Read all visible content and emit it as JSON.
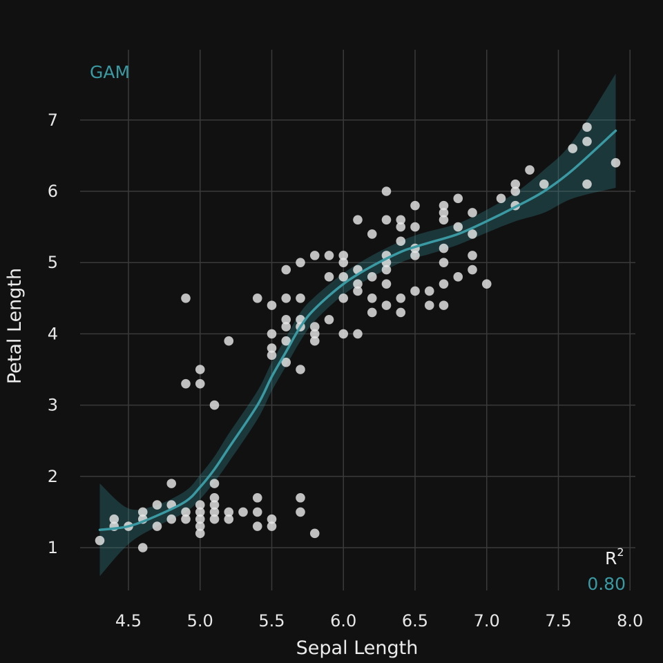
{
  "colors": {
    "background": "#111111",
    "grid": "#3a3a3a",
    "points": "#e6e6e6",
    "fit_line": "#3a9aa3",
    "ribbon": "#3a9aa3",
    "text": "#e8e8e8"
  },
  "chart_data": {
    "type": "scatter",
    "xlabel": "Sepal Length",
    "ylabel": "Petal Length",
    "xlim": [
      4.3,
      7.9
    ],
    "ylim": [
      1.0,
      6.9
    ],
    "x_ticks": [
      "4.5",
      "5.0",
      "5.5",
      "6.0",
      "6.5",
      "7.0",
      "7.5",
      "8.0"
    ],
    "y_ticks": [
      "1",
      "2",
      "3",
      "4",
      "5",
      "6",
      "7"
    ],
    "grid": true,
    "model_label": "GAM",
    "r2_label": "R",
    "r2_superscript": "2",
    "r2_value": "0.80",
    "series": [
      {
        "points": [
          [
            4.3,
            1.1
          ],
          [
            4.4,
            1.3
          ],
          [
            4.4,
            1.4
          ],
          [
            4.5,
            1.3
          ],
          [
            4.6,
            1.0
          ],
          [
            4.6,
            1.4
          ],
          [
            4.6,
            1.5
          ],
          [
            4.7,
            1.3
          ],
          [
            4.7,
            1.6
          ],
          [
            4.8,
            1.4
          ],
          [
            4.8,
            1.6
          ],
          [
            4.8,
            1.9
          ],
          [
            4.9,
            1.4
          ],
          [
            4.9,
            1.5
          ],
          [
            4.9,
            3.3
          ],
          [
            4.9,
            4.5
          ],
          [
            5.0,
            1.2
          ],
          [
            5.0,
            1.3
          ],
          [
            5.0,
            1.4
          ],
          [
            5.0,
            1.5
          ],
          [
            5.0,
            1.6
          ],
          [
            5.0,
            3.3
          ],
          [
            5.0,
            3.5
          ],
          [
            5.1,
            1.4
          ],
          [
            5.1,
            1.5
          ],
          [
            5.1,
            1.6
          ],
          [
            5.1,
            1.7
          ],
          [
            5.1,
            1.9
          ],
          [
            5.1,
            3.0
          ],
          [
            5.2,
            1.4
          ],
          [
            5.2,
            1.5
          ],
          [
            5.2,
            3.9
          ],
          [
            5.3,
            1.5
          ],
          [
            5.4,
            1.3
          ],
          [
            5.4,
            1.5
          ],
          [
            5.4,
            1.7
          ],
          [
            5.4,
            4.5
          ],
          [
            5.5,
            1.3
          ],
          [
            5.5,
            1.4
          ],
          [
            5.5,
            3.7
          ],
          [
            5.5,
            3.8
          ],
          [
            5.5,
            4.0
          ],
          [
            5.5,
            4.4
          ],
          [
            5.6,
            3.6
          ],
          [
            5.6,
            3.9
          ],
          [
            5.6,
            4.1
          ],
          [
            5.6,
            4.2
          ],
          [
            5.6,
            4.5
          ],
          [
            5.6,
            4.9
          ],
          [
            5.7,
            1.5
          ],
          [
            5.7,
            1.7
          ],
          [
            5.7,
            3.5
          ],
          [
            5.7,
            4.1
          ],
          [
            5.7,
            4.2
          ],
          [
            5.7,
            4.5
          ],
          [
            5.7,
            5.0
          ],
          [
            5.8,
            1.2
          ],
          [
            5.8,
            3.9
          ],
          [
            5.8,
            4.0
          ],
          [
            5.8,
            4.1
          ],
          [
            5.8,
            5.1
          ],
          [
            5.9,
            4.2
          ],
          [
            5.9,
            4.8
          ],
          [
            5.9,
            5.1
          ],
          [
            6.0,
            4.0
          ],
          [
            6.0,
            4.5
          ],
          [
            6.0,
            4.8
          ],
          [
            6.0,
            5.0
          ],
          [
            6.0,
            5.1
          ],
          [
            6.1,
            4.0
          ],
          [
            6.1,
            4.6
          ],
          [
            6.1,
            4.7
          ],
          [
            6.1,
            4.9
          ],
          [
            6.1,
            5.6
          ],
          [
            6.2,
            4.3
          ],
          [
            6.2,
            4.5
          ],
          [
            6.2,
            4.8
          ],
          [
            6.2,
            5.4
          ],
          [
            6.3,
            4.4
          ],
          [
            6.3,
            4.7
          ],
          [
            6.3,
            4.9
          ],
          [
            6.3,
            5.0
          ],
          [
            6.3,
            5.1
          ],
          [
            6.3,
            5.6
          ],
          [
            6.3,
            6.0
          ],
          [
            6.4,
            4.3
          ],
          [
            6.4,
            4.5
          ],
          [
            6.4,
            5.3
          ],
          [
            6.4,
            5.5
          ],
          [
            6.4,
            5.6
          ],
          [
            6.5,
            4.6
          ],
          [
            6.5,
            5.1
          ],
          [
            6.5,
            5.2
          ],
          [
            6.5,
            5.5
          ],
          [
            6.5,
            5.8
          ],
          [
            6.6,
            4.4
          ],
          [
            6.6,
            4.6
          ],
          [
            6.7,
            4.4
          ],
          [
            6.7,
            4.7
          ],
          [
            6.7,
            5.0
          ],
          [
            6.7,
            5.2
          ],
          [
            6.7,
            5.6
          ],
          [
            6.7,
            5.7
          ],
          [
            6.7,
            5.8
          ],
          [
            6.8,
            4.8
          ],
          [
            6.8,
            5.5
          ],
          [
            6.8,
            5.9
          ],
          [
            6.9,
            4.9
          ],
          [
            6.9,
            5.1
          ],
          [
            6.9,
            5.4
          ],
          [
            6.9,
            5.7
          ],
          [
            7.0,
            4.7
          ],
          [
            7.1,
            5.9
          ],
          [
            7.2,
            5.8
          ],
          [
            7.2,
            6.0
          ],
          [
            7.2,
            6.1
          ],
          [
            7.3,
            6.3
          ],
          [
            7.4,
            6.1
          ],
          [
            7.6,
            6.6
          ],
          [
            7.7,
            6.1
          ],
          [
            7.7,
            6.7
          ],
          [
            7.7,
            6.9
          ],
          [
            7.9,
            6.4
          ]
        ]
      }
    ],
    "fit": {
      "x": [
        4.3,
        4.5,
        4.7,
        4.9,
        5.0,
        5.1,
        5.2,
        5.4,
        5.5,
        5.6,
        5.7,
        5.8,
        6.0,
        6.2,
        6.4,
        6.5,
        6.6,
        6.8,
        7.0,
        7.2,
        7.4,
        7.6,
        7.9
      ],
      "y": [
        1.25,
        1.3,
        1.45,
        1.65,
        1.85,
        2.1,
        2.4,
        3.0,
        3.4,
        3.75,
        4.1,
        4.35,
        4.7,
        4.95,
        5.15,
        5.22,
        5.28,
        5.4,
        5.58,
        5.78,
        6.0,
        6.3,
        6.85
      ],
      "lower": [
        0.6,
        1.05,
        1.3,
        1.5,
        1.68,
        1.92,
        2.2,
        2.8,
        3.2,
        3.55,
        3.9,
        4.18,
        4.55,
        4.8,
        5.0,
        5.07,
        5.12,
        5.25,
        5.42,
        5.58,
        5.7,
        5.9,
        6.05
      ],
      "upper": [
        1.9,
        1.55,
        1.6,
        1.8,
        2.02,
        2.28,
        2.6,
        3.2,
        3.6,
        3.95,
        4.3,
        4.52,
        4.85,
        5.1,
        5.3,
        5.38,
        5.44,
        5.55,
        5.74,
        5.98,
        6.3,
        6.7,
        7.65
      ]
    }
  }
}
